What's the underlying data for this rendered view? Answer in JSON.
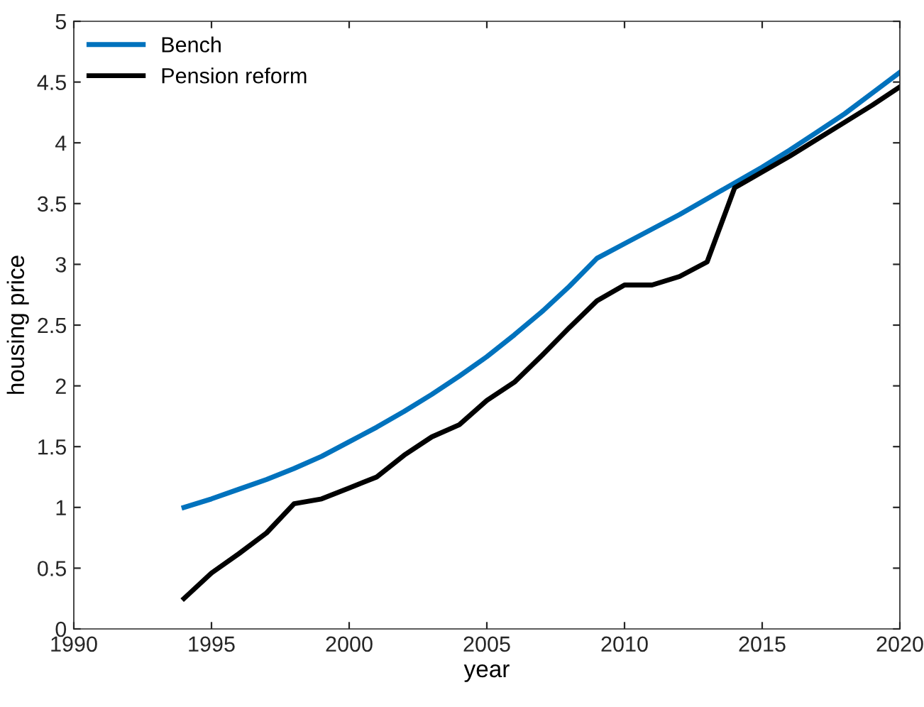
{
  "chart_data": {
    "type": "line",
    "xlabel": "year",
    "ylabel": "housing price",
    "x": [
      1994,
      1995,
      1996,
      1997,
      1998,
      1999,
      2000,
      2001,
      2002,
      2003,
      2004,
      2005,
      2006,
      2007,
      2008,
      2009,
      2010,
      2011,
      2012,
      2013,
      2014,
      2015,
      2016,
      2017,
      2018,
      2019,
      2020
    ],
    "series": [
      {
        "name": "Bench",
        "color": "#0072bd",
        "values": [
          1.0,
          1.07,
          1.15,
          1.23,
          1.32,
          1.42,
          1.54,
          1.66,
          1.79,
          1.93,
          2.08,
          2.24,
          2.42,
          2.61,
          2.82,
          3.05,
          3.17,
          3.29,
          3.41,
          3.54,
          3.67,
          3.8,
          3.94,
          4.09,
          4.24,
          4.41,
          4.58
        ]
      },
      {
        "name": "Pension reform",
        "color": "#000000",
        "values": [
          0.25,
          0.46,
          0.62,
          0.79,
          1.03,
          1.07,
          1.16,
          1.25,
          1.43,
          1.58,
          1.68,
          1.88,
          2.03,
          2.25,
          2.48,
          2.7,
          2.83,
          2.83,
          2.9,
          3.02,
          3.63,
          3.76,
          3.89,
          4.03,
          4.17,
          4.31,
          4.46
        ]
      }
    ],
    "xlim": [
      1990,
      2020
    ],
    "xticks": [
      1990,
      1995,
      2000,
      2005,
      2010,
      2015,
      2020
    ],
    "ylim": [
      0,
      5
    ],
    "yticks": [
      0,
      0.5,
      1,
      1.5,
      2,
      2.5,
      3,
      3.5,
      4,
      4.5,
      5
    ],
    "legend": "top left",
    "grid": false,
    "marker": "none",
    "line_style": "solid"
  }
}
